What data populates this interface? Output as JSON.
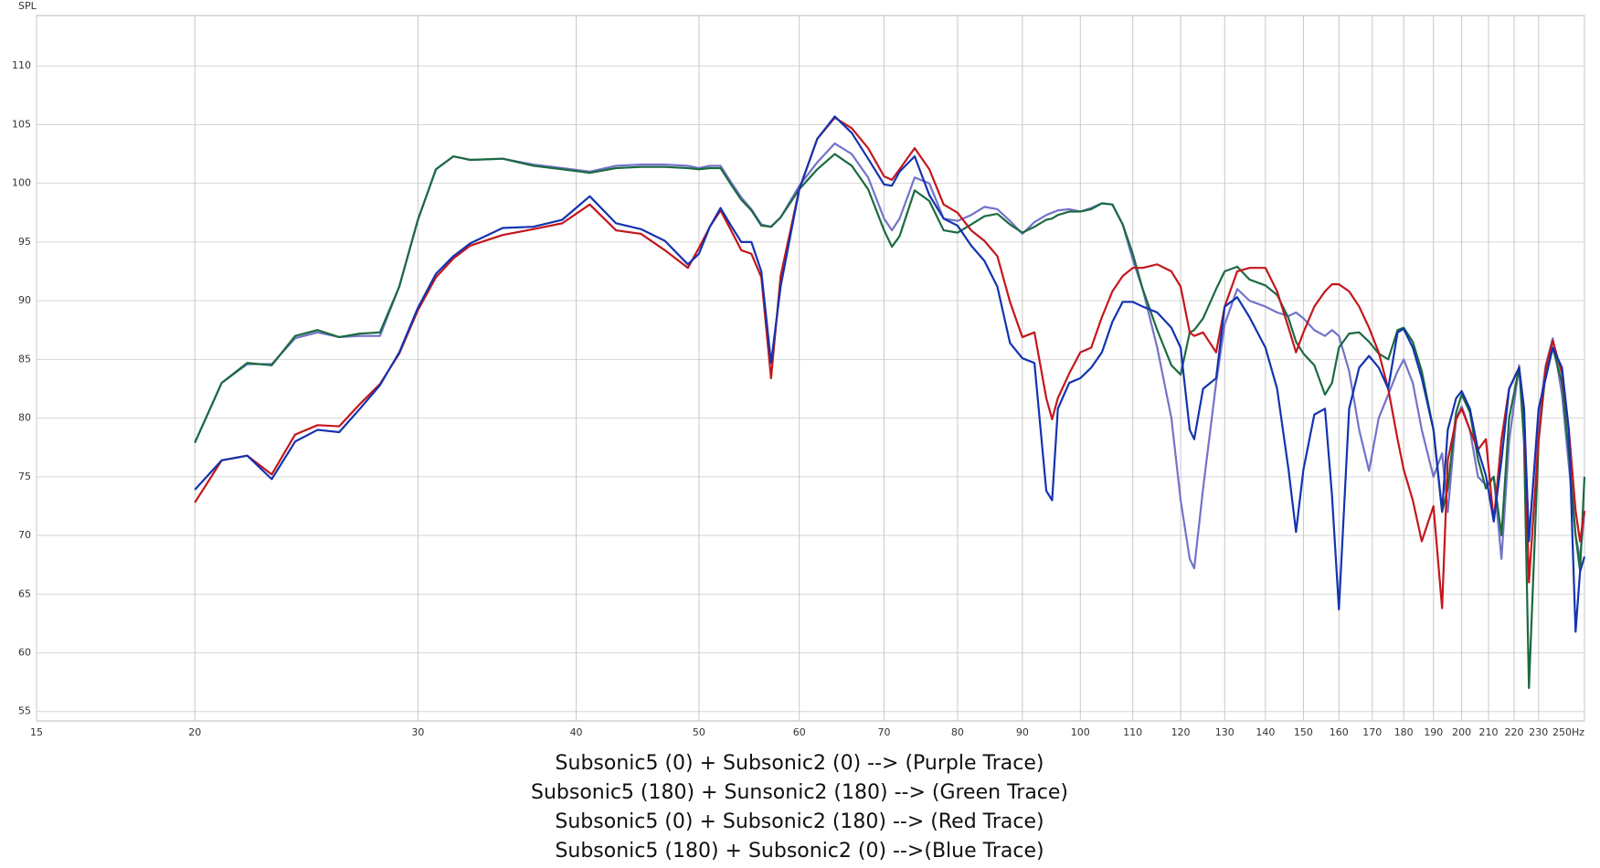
{
  "chart_data": {
    "type": "line",
    "y_axis_label": "SPL",
    "xscale": "log",
    "grid": true,
    "xlim": [
      15,
      250
    ],
    "ylim": [
      54.2,
      114.3
    ],
    "xticks": [
      15,
      20,
      30,
      40,
      50,
      60,
      70,
      80,
      90,
      100,
      110,
      120,
      130,
      140,
      150,
      160,
      170,
      180,
      190,
      200,
      210,
      220,
      230,
      {
        "value": 250,
        "label": "250Hz"
      }
    ],
    "yticks": [
      55,
      60,
      65,
      70,
      75,
      80,
      85,
      90,
      95,
      100,
      105,
      110
    ],
    "x": [
      20,
      21,
      22,
      23,
      24,
      25,
      26,
      27,
      28,
      29,
      30,
      31,
      32,
      33,
      35,
      37,
      39,
      41,
      43,
      45,
      47,
      49,
      50,
      51,
      52,
      53,
      54,
      55,
      56,
      57,
      58,
      60,
      62,
      64,
      66,
      68,
      70,
      71,
      72,
      74,
      76,
      78,
      80,
      82,
      84,
      86,
      88,
      90,
      92,
      94,
      95,
      96,
      98,
      100,
      102,
      104,
      106,
      108,
      110,
      112,
      115,
      118,
      120,
      122,
      123,
      125,
      128,
      130,
      133,
      136,
      140,
      143,
      146,
      148,
      150,
      153,
      156,
      158,
      160,
      163,
      166,
      169,
      172,
      175,
      178,
      180,
      183,
      186,
      190,
      193,
      195,
      198,
      200,
      203,
      206,
      209,
      212,
      215,
      218,
      222,
      224,
      226,
      230,
      233,
      236,
      240,
      243,
      246,
      248,
      250
    ],
    "series": [
      {
        "name": "Subsonic5 (0) + Subsonic2 (0) --> (Purple Trace)",
        "color": "#7373c9",
        "values": [
          77.9,
          83,
          84.6,
          84.6,
          86.8,
          87.3,
          86.9,
          87,
          87,
          91.2,
          96.9,
          101.2,
          102.3,
          102,
          102.1,
          101.6,
          101.3,
          101,
          101.5,
          101.6,
          101.6,
          101.5,
          101.3,
          101.5,
          101.5,
          100.1,
          98.8,
          97.8,
          96.5,
          96.3,
          97.1,
          99.8,
          101.8,
          103.4,
          102.5,
          100.5,
          97,
          96,
          97,
          100.5,
          100,
          97,
          96.8,
          97.3,
          98,
          97.8,
          96.8,
          95.7,
          96.7,
          97.3,
          97.5,
          97.7,
          97.8,
          97.6,
          97.9,
          98.3,
          98.2,
          96.5,
          93.5,
          91,
          86,
          80,
          73,
          68,
          67.2,
          74,
          83,
          88,
          91,
          90,
          89.5,
          89,
          88.7,
          89,
          88.5,
          87.5,
          87,
          87.5,
          87,
          84,
          79,
          75.5,
          80,
          82,
          84,
          85,
          83,
          79,
          75,
          77,
          72,
          80,
          81,
          79,
          75,
          74.3,
          75,
          68,
          78,
          84.5,
          79,
          70,
          80,
          84.5,
          86.8,
          82,
          76,
          70,
          68,
          72
        ]
      },
      {
        "name": "Subsonic5 (180) + Sunsonic2 (180) --> (Green Trace)",
        "color": "#1b6a40",
        "values": [
          77.9,
          83,
          84.7,
          84.5,
          87,
          87.5,
          86.9,
          87.2,
          87.3,
          91.2,
          96.9,
          101.2,
          102.3,
          102,
          102.1,
          101.5,
          101.2,
          100.9,
          101.3,
          101.4,
          101.4,
          101.3,
          101.2,
          101.3,
          101.3,
          99.9,
          98.6,
          97.7,
          96.4,
          96.3,
          97.1,
          99.5,
          101.2,
          102.5,
          101.5,
          99.5,
          96,
          94.6,
          95.5,
          99.4,
          98.5,
          96,
          95.8,
          96.5,
          97.2,
          97.4,
          96.5,
          95.8,
          96.3,
          96.9,
          97,
          97.3,
          97.6,
          97.6,
          97.8,
          98.3,
          98.2,
          96.5,
          94,
          91,
          87.5,
          84.5,
          83.7,
          87.3,
          87.5,
          88.5,
          91,
          92.5,
          92.9,
          91.8,
          91.3,
          90.5,
          88.5,
          86.5,
          85.5,
          84.5,
          82,
          83,
          86,
          87.2,
          87.3,
          86.5,
          85.5,
          85,
          87.5,
          87.7,
          86.5,
          84,
          79,
          72,
          74,
          80.5,
          82,
          80.5,
          76.5,
          74,
          75,
          70,
          80,
          84.3,
          78,
          57,
          78,
          84,
          86,
          83,
          77,
          70,
          67,
          75
        ]
      },
      {
        "name": "Subsonic5 (0) + Subsonic2 (180) --> (Red Trace)",
        "color": "#c4161c",
        "values": [
          72.8,
          76.4,
          76.8,
          75.2,
          78.6,
          79.4,
          79.3,
          81.2,
          82.9,
          85.5,
          89.2,
          92,
          93.6,
          94.7,
          95.6,
          96.1,
          96.6,
          98.2,
          96,
          95.7,
          94.3,
          92.8,
          94.5,
          96.3,
          97.7,
          96,
          94.3,
          94,
          92,
          83.4,
          92.1,
          99.5,
          103.8,
          105.6,
          104.7,
          103,
          100.6,
          100.3,
          101.2,
          103,
          101.2,
          98.2,
          97.5,
          96,
          95.1,
          93.8,
          89.9,
          86.9,
          87.3,
          81.7,
          79.9,
          81.7,
          83.8,
          85.6,
          86,
          88.6,
          90.8,
          92.1,
          92.8,
          92.8,
          93.1,
          92.5,
          91.2,
          87.3,
          87,
          87.3,
          85.6,
          89.5,
          92.5,
          92.8,
          92.8,
          90.8,
          87.7,
          85.6,
          87.3,
          89.5,
          90.8,
          91.4,
          91.4,
          90.8,
          89.5,
          87.7,
          85.6,
          82.5,
          78.2,
          75.6,
          73,
          69.5,
          72.5,
          63.8,
          76.4,
          79.9,
          80.8,
          79,
          77.3,
          78.2,
          71.2,
          78.2,
          82.5,
          84.3,
          80.8,
          66,
          78.2,
          84.3,
          86.6,
          83.8,
          79,
          72.1,
          69.5,
          72.1
        ]
      },
      {
        "name": "Subsonic5 (180) + Subsonic2 (0) -->(Blue Trace)",
        "color": "#1333b0",
        "values": [
          73.9,
          76.4,
          76.8,
          74.8,
          78,
          79,
          78.8,
          80.8,
          82.8,
          85.6,
          89.4,
          92.3,
          93.8,
          94.9,
          96.2,
          96.3,
          96.9,
          98.9,
          96.6,
          96.1,
          95.1,
          93.1,
          94,
          96.3,
          97.9,
          96.4,
          95,
          95,
          92.5,
          84.7,
          91.2,
          99.5,
          103.8,
          105.7,
          104.3,
          102.1,
          99.9,
          99.8,
          101,
          102.3,
          99,
          97,
          96.4,
          94.7,
          93.4,
          91.2,
          86.4,
          85.1,
          84.7,
          73.8,
          73,
          80.8,
          83,
          83.4,
          84.3,
          85.6,
          88.2,
          89.9,
          89.9,
          89.5,
          89,
          87.7,
          86,
          79,
          78.2,
          82.5,
          83.4,
          89.5,
          90.3,
          88.6,
          86,
          82.5,
          75.6,
          70.3,
          75.6,
          80.3,
          80.8,
          73.4,
          63.7,
          80.8,
          84.3,
          85.3,
          84.3,
          82.5,
          87.3,
          87.6,
          86,
          83.4,
          79,
          72.1,
          79,
          81.7,
          82.3,
          80.8,
          77.3,
          75.1,
          71.2,
          76.4,
          82.5,
          84.3,
          80.8,
          69.5,
          80.8,
          83.4,
          86,
          84.3,
          79,
          61.8,
          66.9,
          68.2
        ]
      }
    ]
  }
}
